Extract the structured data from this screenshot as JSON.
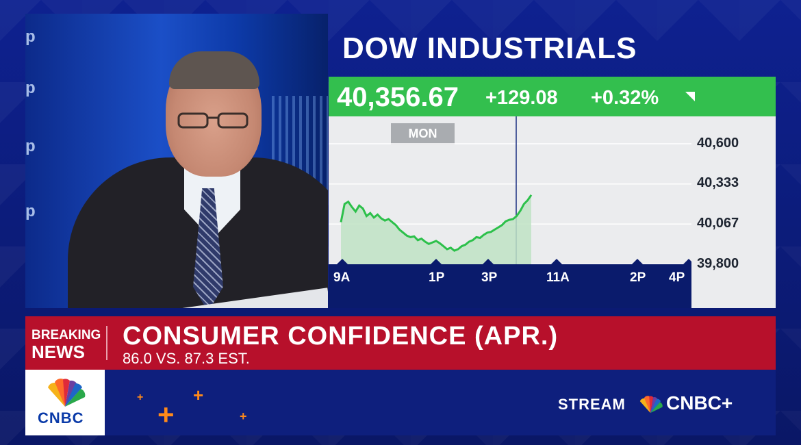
{
  "chart_panel": {
    "title": "DOW INDUSTRIALS",
    "price": "40,356.67",
    "change": "+129.08",
    "change_pct": "+0.32%",
    "day_tag": "MON",
    "y_ticks": [
      "40,600",
      "40,333",
      "40,067",
      "39,800"
    ],
    "x_ticks": [
      "9A",
      "1P",
      "3P",
      "11A",
      "2P",
      "4P"
    ],
    "up_color": "#33bf4e"
  },
  "chart_data": {
    "type": "area",
    "title": "DOW INDUSTRIALS",
    "ylim": [
      39800,
      40600
    ],
    "x_ticks": [
      "9A",
      "1P",
      "3P",
      "11A",
      "2P",
      "4P"
    ],
    "y_ticks": [
      40600,
      40333,
      40067,
      39800
    ],
    "series": [
      {
        "values": [
          40080,
          40200,
          40215,
          40180,
          40150,
          40190,
          40170,
          40120,
          40140,
          40110,
          40130,
          40105,
          40090,
          40100,
          40080,
          40060,
          40030,
          40010,
          39990,
          39980,
          39985,
          39960,
          39970,
          39950,
          39935,
          39945,
          39955,
          39940,
          39920,
          39900,
          39910,
          39890,
          39900,
          39920,
          39930,
          39950,
          39960,
          39980,
          39975,
          39995,
          40010,
          40015,
          40030,
          40045,
          40060,
          40085,
          40095,
          40100,
          40120,
          40155,
          40200,
          40225,
          40260
        ]
      }
    ]
  },
  "breaking_news": {
    "label_line1": "BREAKING",
    "label_line2": "NEWS",
    "headline": "CONSUMER CONFIDENCE (APR.)",
    "subline": "86.0 VS. 87.3 EST."
  },
  "branding": {
    "logo": "CNBC",
    "stream_label": "STREAM",
    "stream_brand": "CNBC+"
  },
  "video": {
    "wall_letters": [
      "p",
      "p",
      "p",
      "p"
    ]
  },
  "colors": {
    "breaking_red": "#b7102b",
    "bg_blue": "#0a1a6e",
    "accent_orange": "#ff8a1a"
  }
}
